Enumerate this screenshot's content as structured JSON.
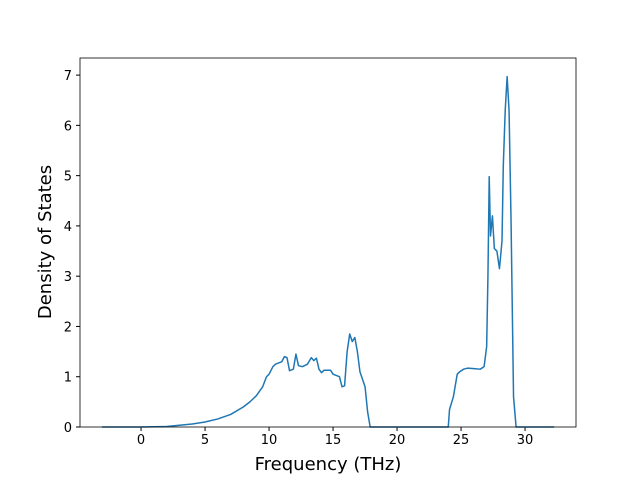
{
  "chart_data": {
    "type": "line",
    "x_label": "Frequency (THz)",
    "y_label": "Density of States",
    "x": [
      -3.05,
      0,
      2,
      4,
      5,
      6,
      7,
      8,
      8.5,
      9,
      9.5,
      9.8,
      10,
      10.3,
      10.5,
      11,
      11.2,
      11.4,
      11.6,
      11.9,
      12.1,
      12.3,
      12.6,
      13,
      13.3,
      13.5,
      13.7,
      13.9,
      14.1,
      14.3,
      14.8,
      15,
      15.5,
      15.7,
      15.9,
      16.1,
      16.3,
      16.5,
      16.7,
      16.9,
      17.1,
      17.3,
      17.5,
      17.7,
      17.9,
      24,
      24.1,
      24.4,
      24.7,
      24.9,
      25.2,
      25.5,
      26,
      26.5,
      26.8,
      27,
      27.1,
      27.2,
      27.3,
      27.45,
      27.6,
      27.8,
      28,
      28.2,
      28.3,
      28.45,
      28.6,
      28.75,
      28.9,
      29.1,
      29.3,
      32.27
    ],
    "series": [
      {
        "color": "#1f77b4",
        "values": [
          0,
          0,
          0.01,
          0.06,
          0.1,
          0.16,
          0.25,
          0.4,
          0.5,
          0.62,
          0.8,
          1.0,
          1.05,
          1.2,
          1.25,
          1.3,
          1.4,
          1.38,
          1.12,
          1.15,
          1.45,
          1.22,
          1.2,
          1.25,
          1.38,
          1.32,
          1.37,
          1.15,
          1.08,
          1.13,
          1.13,
          1.05,
          1.0,
          0.8,
          0.82,
          1.5,
          1.85,
          1.7,
          1.78,
          1.5,
          1.1,
          0.95,
          0.8,
          0.3,
          0,
          0,
          0.35,
          0.6,
          1.05,
          1.1,
          1.15,
          1.17,
          1.16,
          1.15,
          1.2,
          1.6,
          3.0,
          4.98,
          3.8,
          4.2,
          3.55,
          3.5,
          3.15,
          3.7,
          5.2,
          6.3,
          6.97,
          6.3,
          4.2,
          0.6,
          0,
          0
        ]
      }
    ],
    "xlim": [
      -4.77,
      33.98
    ],
    "ylim": [
      0,
      7.34
    ],
    "xticks": [
      0,
      5,
      10,
      15,
      20,
      25,
      30
    ],
    "yticks": [
      0,
      1,
      2,
      3,
      4,
      5,
      6,
      7
    ]
  }
}
